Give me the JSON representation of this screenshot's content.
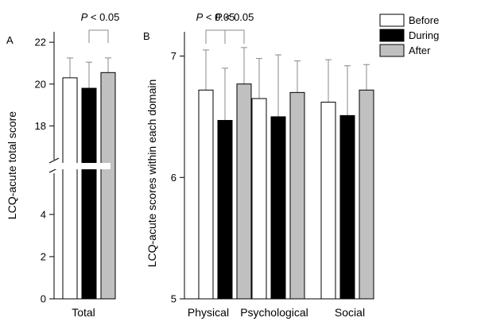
{
  "chart_data": [
    {
      "panel_label": "A",
      "type": "bar",
      "ylabel": "LCQ-acute total score",
      "categories": [
        "Total"
      ],
      "axis_break": true,
      "ylim_lower": [
        0,
        5.5
      ],
      "ylim_upper": [
        16.8,
        22.5
      ],
      "yticks": [
        0,
        2,
        4,
        18,
        20,
        22
      ],
      "series": [
        {
          "name": "Before",
          "color": "#ffffff",
          "values": [
            20.3
          ],
          "error": [
            0.95
          ]
        },
        {
          "name": "During",
          "color": "#000000",
          "values": [
            19.8
          ],
          "error": [
            1.25
          ]
        },
        {
          "name": "After",
          "color": "#c0c0c0",
          "values": [
            20.55
          ],
          "error": [
            0.7
          ]
        }
      ],
      "annotations": [
        {
          "text": "P < 0.05",
          "from_series": 1,
          "to_series": 2,
          "category": 0
        }
      ]
    },
    {
      "panel_label": "B",
      "type": "bar",
      "ylabel": "LCQ-acute scores within each domain",
      "categories": [
        "Physical",
        "Psychological",
        "Social"
      ],
      "ylim": [
        5,
        7.2
      ],
      "yticks": [
        5,
        6,
        7
      ],
      "series": [
        {
          "name": "Before",
          "color": "#ffffff",
          "values": [
            6.72,
            6.65,
            6.62
          ],
          "error": [
            0.33,
            0.33,
            0.35
          ]
        },
        {
          "name": "During",
          "color": "#000000",
          "values": [
            6.47,
            6.5,
            6.51
          ],
          "error": [
            0.43,
            0.51,
            0.41
          ]
        },
        {
          "name": "After",
          "color": "#c0c0c0",
          "values": [
            6.77,
            6.7,
            6.72
          ],
          "error": [
            0.3,
            0.26,
            0.21
          ]
        }
      ],
      "annotations": [
        {
          "text": "P < 0.05",
          "from_series": 0,
          "to_series": 1,
          "category": 0
        },
        {
          "text": "P < 0.05",
          "from_series": 1,
          "to_series": 2,
          "category": 0
        }
      ]
    }
  ],
  "legend": {
    "placement": "top-right",
    "items": [
      {
        "name": "Before",
        "color": "#ffffff"
      },
      {
        "name": "During",
        "color": "#000000"
      },
      {
        "name": "After",
        "color": "#c0c0c0"
      }
    ]
  }
}
